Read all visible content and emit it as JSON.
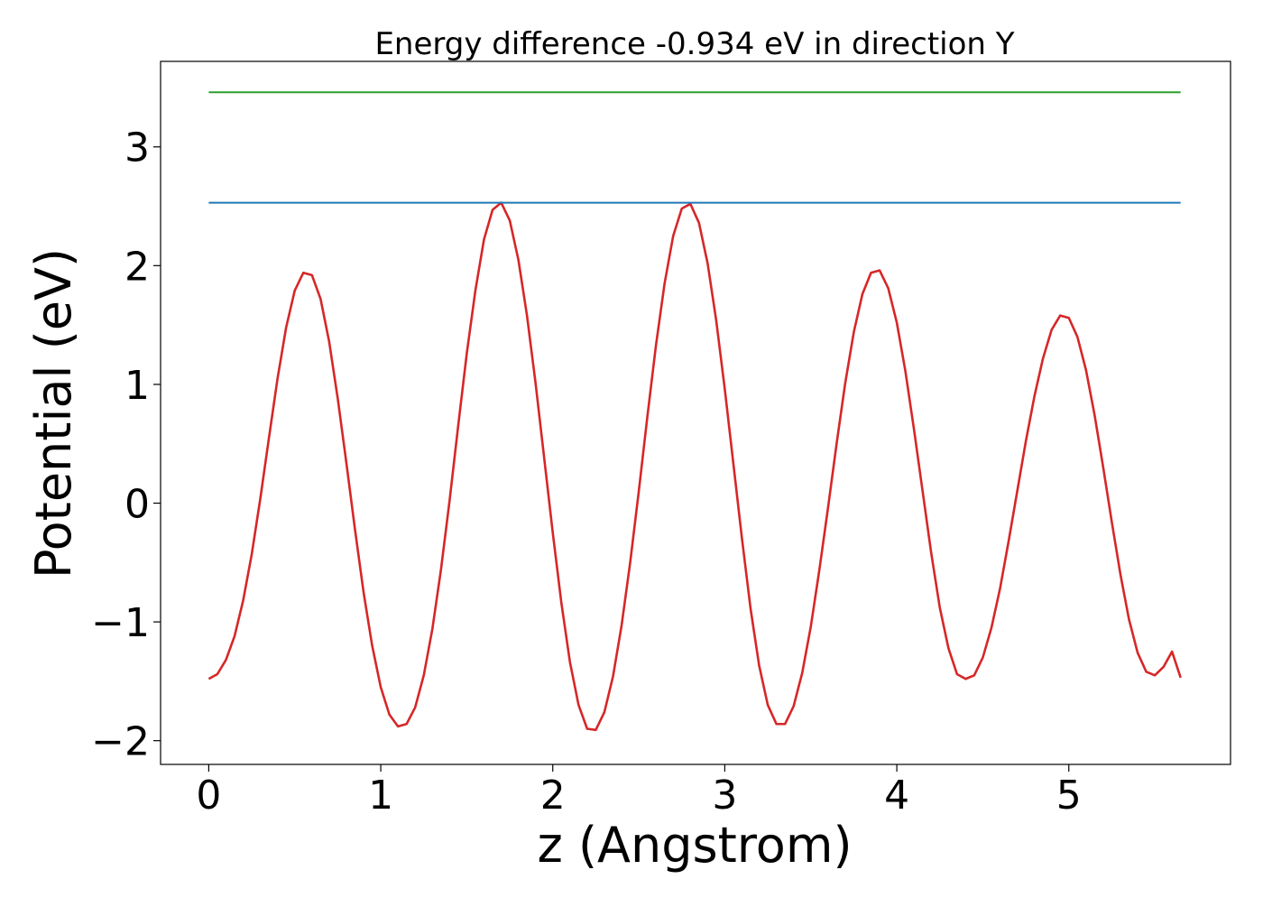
{
  "chart_data": {
    "type": "line",
    "title": "Energy difference -0.934 eV in direction Y",
    "xlabel": "z (Angstrom)",
    "ylabel": "Potential (eV)",
    "xlim": [
      -0.28,
      5.94
    ],
    "ylim": [
      -2.2,
      3.72
    ],
    "x_ticks": [
      0,
      1,
      2,
      3,
      4,
      5
    ],
    "y_ticks": [
      -2,
      -1,
      0,
      1,
      2,
      3
    ],
    "x_tick_labels": [
      "0",
      "1",
      "2",
      "3",
      "4",
      "5"
    ],
    "y_tick_labels": [
      "−2",
      "−1",
      "0",
      "1",
      "2",
      "3"
    ],
    "grid": false,
    "legend": "none",
    "series": [
      {
        "color": "#d62728",
        "x": [
          0.0,
          0.05,
          0.1,
          0.15,
          0.2,
          0.25,
          0.3,
          0.35,
          0.4,
          0.45,
          0.5,
          0.55,
          0.6,
          0.65,
          0.7,
          0.75,
          0.8,
          0.85,
          0.9,
          0.95,
          1.0,
          1.05,
          1.1,
          1.15,
          1.2,
          1.25,
          1.3,
          1.35,
          1.4,
          1.45,
          1.5,
          1.55,
          1.6,
          1.65,
          1.7,
          1.75,
          1.8,
          1.85,
          1.9,
          1.95,
          2.0,
          2.05,
          2.1,
          2.15,
          2.2,
          2.25,
          2.3,
          2.35,
          2.4,
          2.45,
          2.5,
          2.55,
          2.6,
          2.65,
          2.7,
          2.75,
          2.8,
          2.85,
          2.9,
          2.95,
          3.0,
          3.05,
          3.1,
          3.15,
          3.2,
          3.25,
          3.3,
          3.35,
          3.4,
          3.45,
          3.5,
          3.55,
          3.6,
          3.65,
          3.7,
          3.75,
          3.8,
          3.85,
          3.9,
          3.95,
          4.0,
          4.05,
          4.1,
          4.15,
          4.2,
          4.25,
          4.3,
          4.35,
          4.4,
          4.45,
          4.5,
          4.55,
          4.6,
          4.65,
          4.7,
          4.75,
          4.8,
          4.85,
          4.9,
          4.95,
          5.0,
          5.05,
          5.1,
          5.15,
          5.2,
          5.25,
          5.3,
          5.35,
          5.4,
          5.45,
          5.5,
          5.55,
          5.6,
          5.65
        ],
        "y": [
          -1.48,
          -1.44,
          -1.32,
          -1.12,
          -0.82,
          -0.43,
          0.04,
          0.55,
          1.05,
          1.48,
          1.79,
          1.94,
          1.92,
          1.72,
          1.36,
          0.88,
          0.34,
          -0.22,
          -0.75,
          -1.2,
          -1.55,
          -1.78,
          -1.88,
          -1.86,
          -1.72,
          -1.45,
          -1.06,
          -0.56,
          0.02,
          0.65,
          1.26,
          1.79,
          2.22,
          2.47,
          2.53,
          2.38,
          2.05,
          1.58,
          1.01,
          0.38,
          -0.25,
          -0.84,
          -1.34,
          -1.7,
          -1.9,
          -1.91,
          -1.76,
          -1.46,
          -1.03,
          -0.5,
          0.1,
          0.73,
          1.33,
          1.85,
          2.25,
          2.48,
          2.52,
          2.36,
          2.02,
          1.54,
          0.96,
          0.33,
          -0.3,
          -0.89,
          -1.37,
          -1.7,
          -1.86,
          -1.86,
          -1.71,
          -1.43,
          -1.04,
          -0.56,
          -0.04,
          0.5,
          1.01,
          1.44,
          1.76,
          1.94,
          1.96,
          1.81,
          1.52,
          1.11,
          0.62,
          0.1,
          -0.42,
          -0.88,
          -1.22,
          -1.44,
          -1.48,
          -1.45,
          -1.3,
          -1.05,
          -0.72,
          -0.32,
          0.1,
          0.52,
          0.9,
          1.22,
          1.46,
          1.58,
          1.56,
          1.4,
          1.12,
          0.74,
          0.3,
          -0.16,
          -0.6,
          -0.98,
          -1.26,
          -1.42,
          -1.45,
          -1.38,
          -1.25,
          -1.47
        ]
      },
      {
        "color": "#1f77b4",
        "x": [
          0,
          5.65
        ],
        "y": [
          2.53,
          2.53
        ]
      },
      {
        "color": "#2ca02c",
        "x": [
          0,
          5.65
        ],
        "y": [
          3.46,
          3.46
        ]
      }
    ]
  }
}
